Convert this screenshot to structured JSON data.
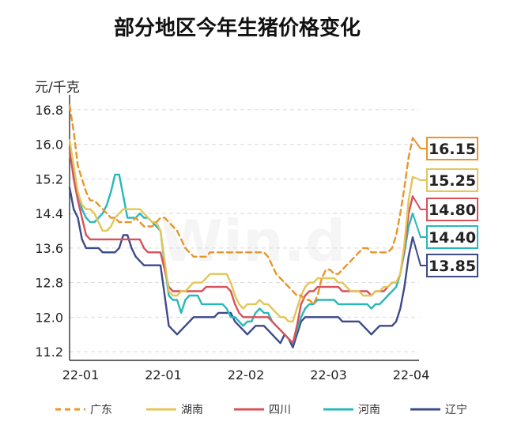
{
  "chart_data": {
    "type": "line",
    "title": "部分地区今年生猪价格变化",
    "ylabel": "元/千克",
    "xlabel": "",
    "watermark": "Win.d",
    "ylim": [
      11.0,
      17.0
    ],
    "yticks": [
      "11.2",
      "12.0",
      "12.8",
      "13.6",
      "14.4",
      "15.2",
      "16.0",
      "16.8"
    ],
    "yticks_values": [
      11.2,
      12.0,
      12.8,
      13.6,
      14.4,
      15.2,
      16.0,
      16.8
    ],
    "xticks": [
      "22-01",
      "22-01",
      "22-02",
      "22-03",
      "22-04"
    ],
    "grid": true,
    "legend_position": "bottom",
    "series": [
      {
        "name": "广东",
        "color": "#e8952a",
        "dash": true,
        "last_label": "16.15",
        "values": [
          16.9,
          16.3,
          15.5,
          15.2,
          14.9,
          14.7,
          14.7,
          14.6,
          14.5,
          14.4,
          14.3,
          14.3,
          14.2,
          14.2,
          14.2,
          14.2,
          14.3,
          14.2,
          14.1,
          14.1,
          14.1,
          14.2,
          14.3,
          14.3,
          14.2,
          14.1,
          14.0,
          13.8,
          13.6,
          13.5,
          13.4,
          13.4,
          13.4,
          13.4,
          13.5,
          13.5,
          13.5,
          13.5,
          13.5,
          13.5,
          13.5,
          13.5,
          13.5,
          13.5,
          13.5,
          13.5,
          13.5,
          13.5,
          13.4,
          13.2,
          13.0,
          12.9,
          12.8,
          12.7,
          12.6,
          12.5,
          12.5,
          12.4,
          12.4,
          12.3,
          12.5,
          12.9,
          13.1,
          13.1,
          13.0,
          13.0,
          13.1,
          13.2,
          13.3,
          13.4,
          13.5,
          13.6,
          13.6,
          13.5,
          13.5,
          13.5,
          13.5,
          13.5,
          13.6,
          13.9,
          14.4,
          15.0,
          15.7,
          16.15
        ]
      },
      {
        "name": "湖南",
        "color": "#e3c558",
        "dash": false,
        "last_label": "15.25",
        "values": [
          16.1,
          15.5,
          14.9,
          14.6,
          14.5,
          14.5,
          14.4,
          14.2,
          14.0,
          14.0,
          14.1,
          14.3,
          14.4,
          14.5,
          14.5,
          14.5,
          14.5,
          14.5,
          14.4,
          14.3,
          14.2,
          14.2,
          14.0,
          13.3,
          12.6,
          12.5,
          12.5,
          12.6,
          12.6,
          12.7,
          12.8,
          12.8,
          12.8,
          12.9,
          13.0,
          13.0,
          13.0,
          13.0,
          13.0,
          12.8,
          12.5,
          12.3,
          12.2,
          12.3,
          12.3,
          12.3,
          12.4,
          12.3,
          12.3,
          12.2,
          12.1,
          12.0,
          12.0,
          11.9,
          11.9,
          12.2,
          12.5,
          12.7,
          12.8,
          12.8,
          12.9,
          12.9,
          12.9,
          12.9,
          12.9,
          12.8,
          12.8,
          12.7,
          12.6,
          12.6,
          12.6,
          12.5,
          12.5,
          12.5,
          12.6,
          12.6,
          12.7,
          12.7,
          12.8,
          12.8,
          13.0,
          13.7,
          14.7,
          15.25
        ]
      },
      {
        "name": "四川",
        "color": "#d9505a",
        "dash": false,
        "last_label": "14.80",
        "values": [
          15.9,
          15.2,
          14.7,
          14.3,
          13.9,
          13.8,
          13.8,
          13.8,
          13.8,
          13.8,
          13.8,
          13.8,
          13.8,
          13.8,
          13.8,
          13.8,
          13.8,
          13.8,
          13.6,
          13.5,
          13.5,
          13.5,
          13.5,
          13.1,
          12.7,
          12.6,
          12.6,
          12.6,
          12.6,
          12.6,
          12.6,
          12.6,
          12.6,
          12.7,
          12.7,
          12.7,
          12.7,
          12.7,
          12.7,
          12.6,
          12.3,
          12.1,
          12.0,
          12.0,
          12.0,
          12.0,
          12.0,
          12.0,
          12.0,
          11.9,
          11.8,
          11.7,
          11.6,
          11.5,
          11.4,
          11.8,
          12.3,
          12.5,
          12.6,
          12.6,
          12.7,
          12.7,
          12.7,
          12.7,
          12.7,
          12.7,
          12.6,
          12.6,
          12.6,
          12.6,
          12.6,
          12.6,
          12.6,
          12.5,
          12.6,
          12.6,
          12.6,
          12.7,
          12.8,
          12.8,
          13.0,
          13.6,
          14.4,
          14.8
        ]
      },
      {
        "name": "河南",
        "color": "#28b8b8",
        "dash": false,
        "last_label": "14.40",
        "values": [
          15.8,
          15.3,
          14.9,
          14.5,
          14.3,
          14.2,
          14.2,
          14.3,
          14.4,
          14.6,
          14.9,
          15.3,
          15.3,
          14.8,
          14.3,
          14.3,
          14.3,
          14.4,
          14.3,
          14.3,
          14.2,
          14.1,
          14.0,
          13.2,
          12.5,
          12.4,
          12.4,
          12.1,
          12.4,
          12.5,
          12.5,
          12.5,
          12.3,
          12.3,
          12.3,
          12.3,
          12.3,
          12.3,
          12.2,
          12.0,
          12.0,
          11.9,
          11.8,
          11.9,
          11.9,
          12.1,
          12.2,
          12.1,
          12.1,
          11.9,
          11.8,
          11.7,
          11.6,
          11.5,
          11.4,
          11.7,
          12.0,
          12.2,
          12.3,
          12.3,
          12.4,
          12.4,
          12.4,
          12.4,
          12.4,
          12.3,
          12.3,
          12.3,
          12.3,
          12.3,
          12.3,
          12.3,
          12.3,
          12.2,
          12.3,
          12.3,
          12.4,
          12.5,
          12.6,
          12.7,
          13.0,
          13.5,
          14.1,
          14.4
        ]
      },
      {
        "name": "辽宁",
        "color": "#3d4a8a",
        "dash": false,
        "last_label": "13.85",
        "values": [
          15.0,
          14.5,
          14.3,
          13.8,
          13.6,
          13.6,
          13.6,
          13.6,
          13.5,
          13.5,
          13.5,
          13.5,
          13.6,
          13.9,
          13.9,
          13.6,
          13.4,
          13.3,
          13.2,
          13.2,
          13.2,
          13.2,
          13.2,
          12.5,
          11.8,
          11.7,
          11.6,
          11.7,
          11.8,
          11.9,
          12.0,
          12.0,
          12.0,
          12.0,
          12.0,
          12.0,
          12.1,
          12.1,
          12.1,
          12.1,
          11.9,
          11.8,
          11.7,
          11.6,
          11.7,
          11.8,
          11.8,
          11.8,
          11.7,
          11.6,
          11.5,
          11.4,
          11.6,
          11.5,
          11.3,
          11.6,
          11.9,
          12.0,
          12.0,
          12.0,
          12.0,
          12.0,
          12.0,
          12.0,
          12.0,
          12.0,
          11.9,
          11.9,
          11.9,
          11.9,
          11.9,
          11.8,
          11.7,
          11.6,
          11.7,
          11.8,
          11.8,
          11.8,
          11.8,
          11.9,
          12.2,
          12.7,
          13.4,
          13.85
        ]
      }
    ]
  }
}
